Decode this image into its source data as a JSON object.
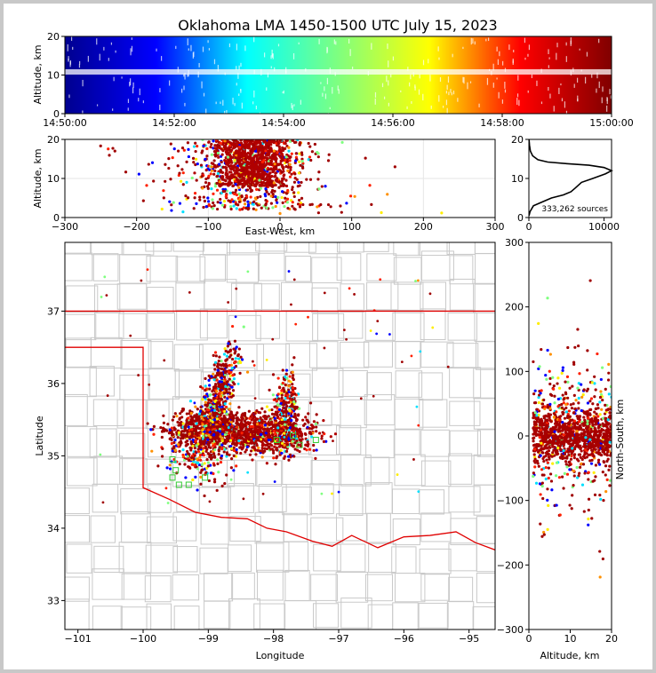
{
  "chart_data": [
    {
      "panel": "time-altitude",
      "type": "scatter",
      "title": "Oklahoma LMA 1450-1500 UTC July 15, 2023",
      "ylabel": "Altitude, km",
      "ylim": [
        0,
        20
      ],
      "yticks": [
        "0",
        "10",
        "20"
      ],
      "xticks": [
        "14:50:00",
        "14:52:00",
        "14:54:00",
        "14:56:00",
        "14:58:00",
        "15:00:00"
      ],
      "color_encoding": "time",
      "colormap": [
        "#00008f",
        "#0000ff",
        "#00ffff",
        "#7fff7f",
        "#ffff00",
        "#ff0000",
        "#800000"
      ]
    },
    {
      "panel": "east-west-altitude",
      "type": "scatter",
      "xlabel": "East-West, km",
      "ylabel": "Altitude, km",
      "xlim": [
        -300,
        300
      ],
      "ylim": [
        0,
        20
      ],
      "xticks": [
        "−300",
        "−200",
        "−100",
        "0",
        "100",
        "200",
        "300"
      ],
      "yticks": [
        "0",
        "10",
        "20"
      ]
    },
    {
      "panel": "altitude-histogram",
      "type": "line",
      "xlim": [
        0,
        11000
      ],
      "ylim": [
        0,
        20
      ],
      "xticks": [
        "0",
        "10000"
      ],
      "yticks": [
        "0",
        "10",
        "20"
      ],
      "annotation": "333,262 sources",
      "x": [
        20,
        150,
        600,
        1800,
        3000,
        4600,
        5600,
        6200,
        7000,
        8500,
        10200,
        11000,
        10000,
        8000,
        5000,
        2500,
        1200,
        500,
        200,
        80,
        20
      ],
      "y": [
        0.5,
        1.5,
        3,
        4,
        5,
        5.8,
        6.6,
        7.6,
        9,
        10,
        11.2,
        12,
        12.8,
        13.4,
        13.8,
        14.2,
        14.8,
        15.8,
        17,
        18.5,
        20
      ]
    },
    {
      "panel": "map",
      "type": "scatter",
      "xlabel": "Longitude",
      "ylabel": "Latitude",
      "xlim": [
        -101.2,
        -94.6
      ],
      "ylim": [
        32.6,
        37.95
      ],
      "xticks": [
        "−101",
        "−100",
        "−99",
        "−98",
        "−97",
        "−96",
        "−95"
      ],
      "yticks": [
        "33",
        "34",
        "35",
        "36",
        "37"
      ],
      "grid": false
    },
    {
      "panel": "north-south-altitude",
      "type": "scatter",
      "xlabel": "Altitude, km",
      "ylabel": "North-South, km",
      "xlim": [
        0,
        20
      ],
      "ylim": [
        -300,
        300
      ],
      "xticks": [
        "0",
        "10",
        "20"
      ],
      "yticks": [
        "−300",
        "−200",
        "−100",
        "0",
        "100",
        "200",
        "300"
      ]
    }
  ]
}
